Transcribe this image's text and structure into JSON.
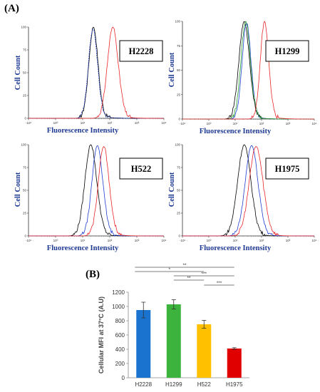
{
  "panel_a_label": "(A)",
  "panel_b_label": "(B)",
  "chart_data": [
    {
      "type": "line",
      "panel": "A",
      "label": "H2228",
      "ylabel": "Cell Count",
      "xlabel": "Fluorescence Intensity",
      "xscale": "log",
      "xlim": [
        0.1,
        10000
      ],
      "ylim": [
        0,
        100
      ],
      "x_tick_labels": [
        "-10¹",
        "10⁰",
        "10¹",
        "10²",
        "10³",
        "10⁴"
      ],
      "y_tick_labels": [
        "0",
        "25",
        "50",
        "75",
        "100"
      ],
      "series": [
        {
          "color": "#000000",
          "dash": false,
          "peak_x": 25,
          "width": 0.17,
          "peak": 100
        },
        {
          "color": "#1f3fd1",
          "dash": true,
          "peak_x": 24,
          "width": 0.17,
          "peak": 98
        },
        {
          "color": "#e8262a",
          "dash": false,
          "peak_x": 130,
          "width": 0.2,
          "peak": 100
        }
      ]
    },
    {
      "type": "line",
      "panel": "A",
      "label": "H1299",
      "ylabel": "Cell Count",
      "xlabel": "Fluorescence Intensity",
      "xscale": "log",
      "xlim": [
        0.1,
        10000
      ],
      "ylim": [
        0,
        100
      ],
      "x_tick_labels": [
        "-10¹",
        "10⁰",
        "10¹",
        "10²",
        "10³",
        "10⁴"
      ],
      "y_tick_labels": [
        "0",
        "25",
        "50",
        "75",
        "100"
      ],
      "series": [
        {
          "color": "#000000",
          "dash": false,
          "peak_x": 22,
          "width": 0.2,
          "peak": 100
        },
        {
          "color": "#1f3fd1",
          "dash": false,
          "peak_x": 27,
          "width": 0.17,
          "peak": 98
        },
        {
          "color": "#2ca02c",
          "dash": false,
          "peak_x": 25,
          "width": 0.18,
          "peak": 100
        },
        {
          "color": "#e8262a",
          "dash": false,
          "peak_x": 130,
          "width": 0.16,
          "peak": 100
        }
      ]
    },
    {
      "type": "line",
      "panel": "A",
      "label": "H522",
      "ylabel": "Cell Count",
      "xlabel": "Fluorescence Intensity",
      "xscale": "log",
      "xlim": [
        0.1,
        10000
      ],
      "ylim": [
        0,
        100
      ],
      "x_tick_labels": [
        "-10¹",
        "10⁰",
        "10¹",
        "10²",
        "10³",
        "10⁴"
      ],
      "y_tick_labels": [
        "0",
        "25",
        "50",
        "75",
        "100"
      ],
      "series": [
        {
          "color": "#000000",
          "dash": false,
          "peak_x": 20,
          "width": 0.22,
          "peak": 100
        },
        {
          "color": "#1f3fd1",
          "dash": false,
          "peak_x": 35,
          "width": 0.2,
          "peak": 99
        },
        {
          "color": "#e8262a",
          "dash": false,
          "peak_x": 60,
          "width": 0.2,
          "peak": 98
        }
      ]
    },
    {
      "type": "line",
      "panel": "A",
      "label": "H1975",
      "ylabel": "Cell Count",
      "xlabel": "Fluorescence Intensity",
      "xscale": "log",
      "xlim": [
        0.1,
        10000
      ],
      "ylim": [
        0,
        100
      ],
      "x_tick_labels": [
        "-10¹",
        "10⁰",
        "10¹",
        "10²",
        "10³",
        "10⁴"
      ],
      "y_tick_labels": [
        "0",
        "25",
        "50",
        "75",
        "100"
      ],
      "series": [
        {
          "color": "#000000",
          "dash": false,
          "peak_x": 22,
          "width": 0.25,
          "peak": 100
        },
        {
          "color": "#1f3fd1",
          "dash": false,
          "peak_x": 42,
          "width": 0.24,
          "peak": 99
        },
        {
          "color": "#e8262a",
          "dash": false,
          "peak_x": 62,
          "width": 0.26,
          "peak": 98
        }
      ]
    },
    {
      "type": "bar",
      "panel": "B",
      "categories": [
        "H2228",
        "H1299",
        "H522",
        "H1975"
      ],
      "values": [
        950,
        1030,
        750,
        410
      ],
      "errors": [
        110,
        65,
        55,
        12
      ],
      "colors": [
        "#1a73cf",
        "#3cb33c",
        "#ffc000",
        "#e00000"
      ],
      "ylabel": "Cellular MFI at 37°C (A.U)",
      "ylim": [
        0,
        1200
      ],
      "yticks": [
        0,
        200,
        400,
        600,
        800,
        1000,
        1200
      ],
      "significance": [
        {
          "from": 0,
          "to": 3,
          "label": "**"
        },
        {
          "from": 0,
          "to": 2,
          "label": "*"
        },
        {
          "from": 1,
          "to": 3,
          "label": "***"
        },
        {
          "from": 1,
          "to": 2,
          "label": "**"
        },
        {
          "from": 2,
          "to": 3,
          "label": "***"
        }
      ]
    }
  ]
}
